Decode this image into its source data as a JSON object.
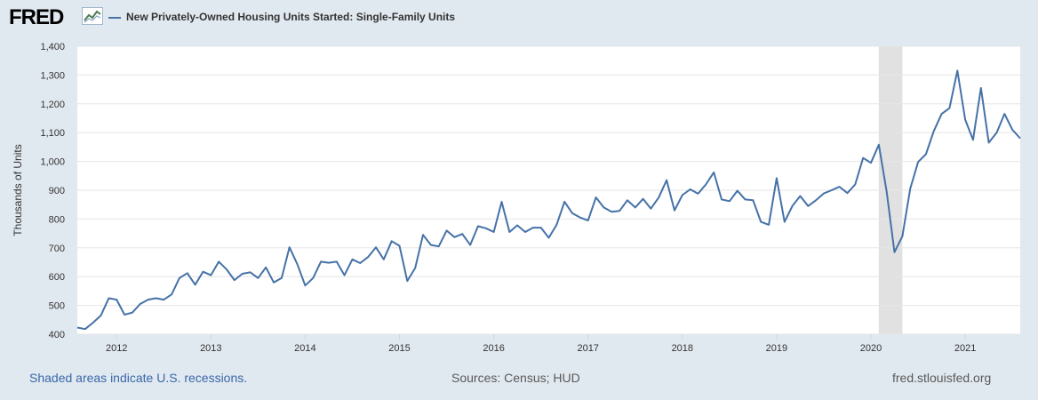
{
  "header": {
    "logo_text": "FRED",
    "logo_icon": "line-chart-icon"
  },
  "colors": {
    "page_bg": "#e1e9f0",
    "plot_bg": "#ffffff",
    "series": "#4572a7",
    "recession": "#e1e1e1",
    "grid": "#e6e6e6",
    "link": "#3a67a8"
  },
  "footer": {
    "recession_note": "Shaded areas indicate U.S. recessions.",
    "sources": "Sources: Census; HUD",
    "site": "fred.stlouisfed.org"
  },
  "chart_data": {
    "type": "line",
    "title": "",
    "xlabel": "",
    "ylabel": "Thousands of Units",
    "ylim": [
      400,
      1400
    ],
    "y_ticks": [
      "400",
      "500",
      "600",
      "700",
      "800",
      "900",
      "1,000",
      "1,100",
      "1,200",
      "1,300",
      "1,400"
    ],
    "x_ticks": [
      "2012",
      "2013",
      "2014",
      "2015",
      "2016",
      "2017",
      "2018",
      "2019",
      "2020",
      "2021"
    ],
    "grid": true,
    "legend_position": "top-left",
    "recessions": [
      [
        "2020-02",
        "2020-04"
      ]
    ],
    "series": [
      {
        "name": "New Privately-Owned Housing Units Started: Single-Family Units",
        "x": [
          "2011-08",
          "2011-09",
          "2011-10",
          "2011-11",
          "2011-12",
          "2012-01",
          "2012-02",
          "2012-03",
          "2012-04",
          "2012-05",
          "2012-06",
          "2012-07",
          "2012-08",
          "2012-09",
          "2012-10",
          "2012-11",
          "2012-12",
          "2013-01",
          "2013-02",
          "2013-03",
          "2013-04",
          "2013-05",
          "2013-06",
          "2013-07",
          "2013-08",
          "2013-09",
          "2013-10",
          "2013-11",
          "2013-12",
          "2014-01",
          "2014-02",
          "2014-03",
          "2014-04",
          "2014-05",
          "2014-06",
          "2014-07",
          "2014-08",
          "2014-09",
          "2014-10",
          "2014-11",
          "2014-12",
          "2015-01",
          "2015-02",
          "2015-03",
          "2015-04",
          "2015-05",
          "2015-06",
          "2015-07",
          "2015-08",
          "2015-09",
          "2015-10",
          "2015-11",
          "2015-12",
          "2016-01",
          "2016-02",
          "2016-03",
          "2016-04",
          "2016-05",
          "2016-06",
          "2016-07",
          "2016-08",
          "2016-09",
          "2016-10",
          "2016-11",
          "2016-12",
          "2017-01",
          "2017-02",
          "2017-03",
          "2017-04",
          "2017-05",
          "2017-06",
          "2017-07",
          "2017-08",
          "2017-09",
          "2017-10",
          "2017-11",
          "2017-12",
          "2018-01",
          "2018-02",
          "2018-03",
          "2018-04",
          "2018-05",
          "2018-06",
          "2018-07",
          "2018-08",
          "2018-09",
          "2018-10",
          "2018-11",
          "2018-12",
          "2019-01",
          "2019-02",
          "2019-03",
          "2019-04",
          "2019-05",
          "2019-06",
          "2019-07",
          "2019-08",
          "2019-09",
          "2019-10",
          "2019-11",
          "2019-12",
          "2020-01",
          "2020-02",
          "2020-03",
          "2020-04",
          "2020-05",
          "2020-06",
          "2020-07",
          "2020-08",
          "2020-09",
          "2020-10",
          "2020-11",
          "2020-12",
          "2021-01",
          "2021-02",
          "2021-03",
          "2021-04",
          "2021-05",
          "2021-06",
          "2021-07",
          "2021-08"
        ],
        "values": [
          423,
          418,
          440,
          465,
          525,
          520,
          468,
          475,
          505,
          520,
          525,
          520,
          538,
          595,
          612,
          572,
          617,
          605,
          652,
          625,
          588,
          610,
          615,
          595,
          632,
          580,
          595,
          702,
          643,
          569,
          595,
          652,
          648,
          652,
          605,
          660,
          647,
          668,
          702,
          660,
          723,
          707,
          585,
          630,
          745,
          710,
          705,
          760,
          737,
          748,
          710,
          775,
          768,
          755,
          860,
          755,
          778,
          755,
          770,
          770,
          735,
          780,
          860,
          820,
          805,
          795,
          875,
          840,
          825,
          828,
          865,
          840,
          870,
          836,
          875,
          935,
          830,
          883,
          903,
          888,
          920,
          962,
          868,
          862,
          898,
          868,
          865,
          790,
          780,
          942,
          790,
          845,
          880,
          845,
          865,
          889,
          900,
          912,
          890,
          920,
          1012,
          995,
          1058,
          895,
          685,
          740,
          905,
          998,
          1025,
          1105,
          1165,
          1185,
          1315,
          1145,
          1075,
          1255,
          1065,
          1100,
          1165,
          1110,
          1080
        ]
      }
    ]
  }
}
